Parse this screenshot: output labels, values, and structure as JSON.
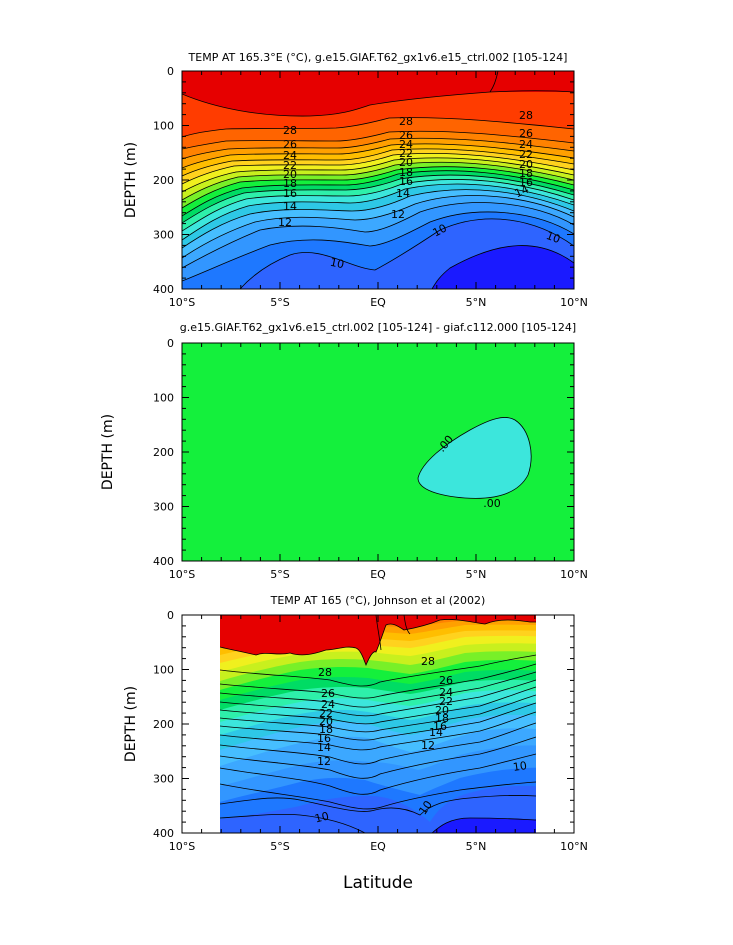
{
  "figure": {
    "xlabel": "Latitude"
  },
  "chart_data": [
    {
      "type": "contour",
      "title": "TEMP AT 165.3°E (°C), g.e15.GIAF.T62_gx1v6.e15_ctrl.002 [105-124]",
      "ylabel": "DEPTH (m)",
      "x_ticks": [
        "10°S",
        "5°S",
        "EQ",
        "5°N",
        "10°N"
      ],
      "xlim": [
        -10,
        10
      ],
      "y_ticks": [
        "0",
        "100",
        "200",
        "300",
        "400"
      ],
      "ylim": [
        0,
        400
      ],
      "contour_labels": [
        "28",
        "28",
        "28",
        "26",
        "26",
        "26",
        "24",
        "24",
        "24",
        "22",
        "22",
        "22",
        "20",
        "20",
        "20",
        "18",
        "18",
        "18",
        "16",
        "16",
        "16",
        "14",
        "14",
        "14",
        "12",
        "12",
        "10",
        "10",
        "10"
      ]
    },
    {
      "type": "contour",
      "title": "g.e15.GIAF.T62_gx1v6.e15_ctrl.002 [105-124] - giaf.c112.000 [105-124]",
      "ylabel": "DEPTH (m)",
      "x_ticks": [
        "10°S",
        "5°S",
        "EQ",
        "5°N",
        "10°N"
      ],
      "xlim": [
        -10,
        10
      ],
      "y_ticks": [
        "0",
        "100",
        "200",
        "300",
        "400"
      ],
      "ylim": [
        0,
        400
      ],
      "contour_labels": [
        ".00",
        ".00"
      ]
    },
    {
      "type": "contour",
      "title": "TEMP AT 165 (°C), Johnson et al (2002)",
      "ylabel": "DEPTH (m)",
      "x_ticks": [
        "10°S",
        "5°S",
        "EQ",
        "5°N",
        "10°N"
      ],
      "xlim": [
        -10,
        10
      ],
      "y_ticks": [
        "0",
        "100",
        "200",
        "300",
        "400"
      ],
      "ylim": [
        0,
        400
      ],
      "data_extent": [
        -8,
        8
      ],
      "contour_labels": [
        "28",
        "28",
        "26",
        "26",
        "24",
        "24",
        "22",
        "22",
        "20",
        "20",
        "18",
        "18",
        "16",
        "16",
        "14",
        "14",
        "12",
        "12",
        "10",
        "10",
        "10"
      ]
    }
  ]
}
